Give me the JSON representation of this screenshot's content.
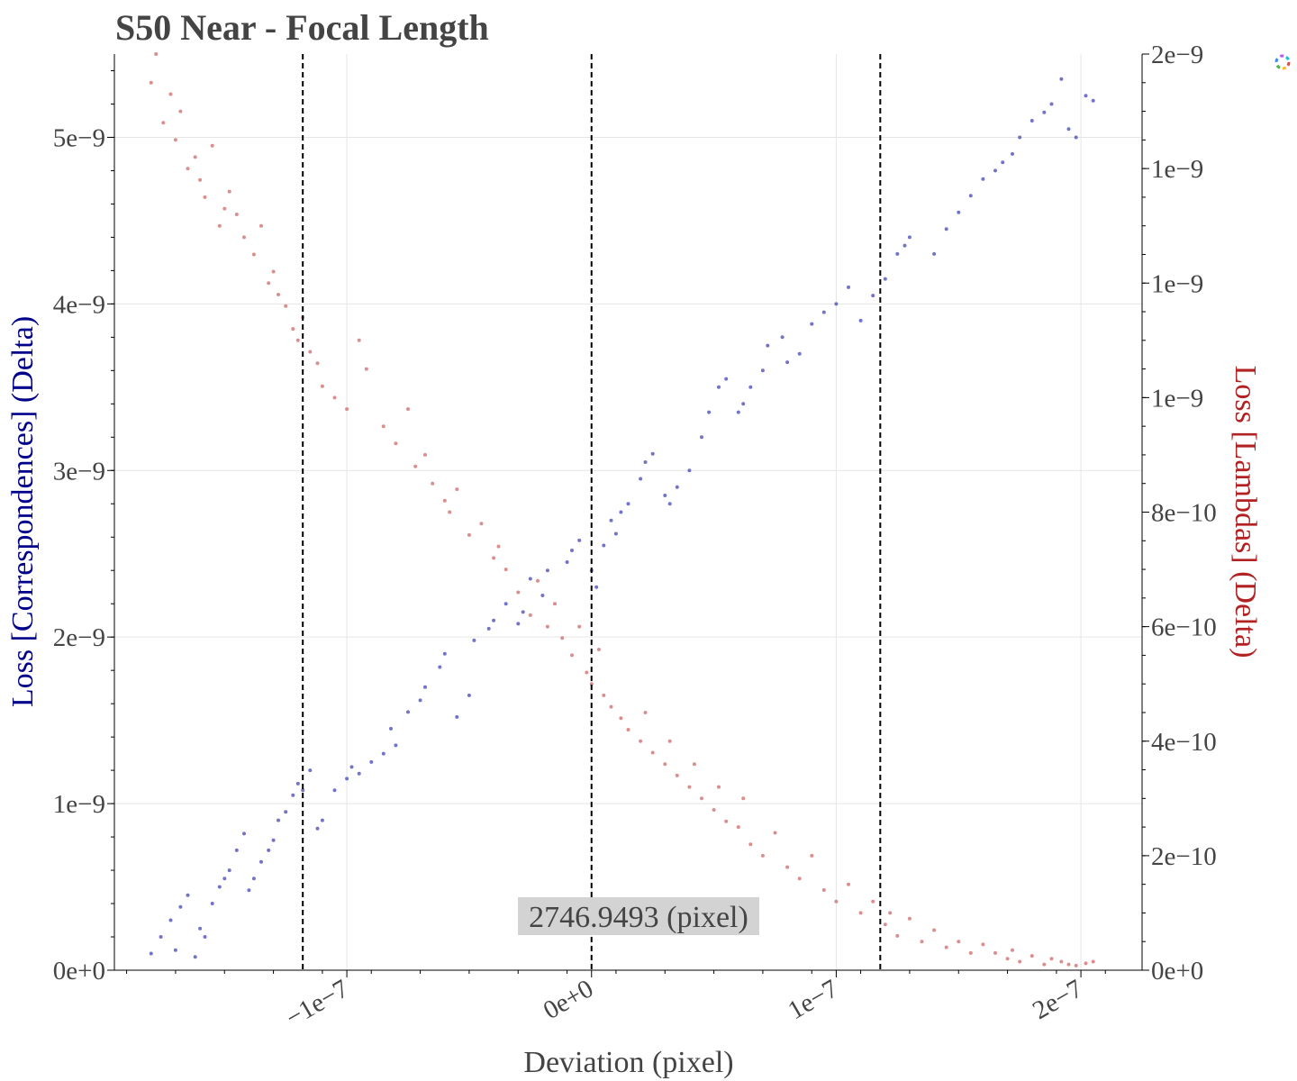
{
  "chart_data": {
    "type": "scatter",
    "title": "S50 Near - Focal Length",
    "xlabel": "Deviation (pixel)",
    "ylabel": "Loss [Correspondences] (Delta)",
    "y2label": "Loss [Lambdas] (Delta)",
    "xlim": [
      -1.95e-07,
      2.25e-07
    ],
    "ylim": [
      0,
      5.5e-09
    ],
    "y2lim": [
      0,
      1.6e-09
    ],
    "x_ticks": [
      -1e-07,
      0,
      1e-07,
      2e-07
    ],
    "x_tick_labels": [
      "−1e−7",
      "0e+0",
      "1e−7",
      "2e−7"
    ],
    "y_ticks": [
      0,
      1e-09,
      2e-09,
      3e-09,
      4e-09,
      5e-09
    ],
    "y_tick_labels": [
      "0e+0",
      "1e−9",
      "2e−9",
      "3e−9",
      "4e−9",
      "5e−9"
    ],
    "y2_ticks": [
      0,
      2e-10,
      4e-10,
      6e-10,
      8e-10,
      1e-09,
      1.2e-09,
      1.4e-09,
      1.6e-09
    ],
    "y2_tick_labels": [
      "0e+0",
      "2e−10",
      "4e−10",
      "6e−10",
      "8e−10",
      "1e−9",
      "1e−9",
      "1e−9",
      "2e−9"
    ],
    "grid": true,
    "vlines": [
      -1.18e-07,
      0,
      1.18e-07
    ],
    "annotation": "2746.9493 (pixel)",
    "series": [
      {
        "axis": "left",
        "color": "#5a5abf",
        "x": [
          -1.8e-07,
          -1.76e-07,
          -1.72e-07,
          -1.7e-07,
          -1.68e-07,
          -1.65e-07,
          -1.62e-07,
          -1.6e-07,
          -1.58e-07,
          -1.55e-07,
          -1.52e-07,
          -1.5e-07,
          -1.48e-07,
          -1.45e-07,
          -1.42e-07,
          -1.4e-07,
          -1.38e-07,
          -1.35e-07,
          -1.32e-07,
          -1.3e-07,
          -1.28e-07,
          -1.25e-07,
          -1.22e-07,
          -1.2e-07,
          -1.18e-07,
          -1.15e-07,
          -1.12e-07,
          -1.1e-07,
          -1.05e-07,
          -1e-07,
          -9.8e-08,
          -9.5e-08,
          -9e-08,
          -8.5e-08,
          -8.2e-08,
          -8e-08,
          -7.5e-08,
          -7e-08,
          -6.8e-08,
          -6.2e-08,
          -6e-08,
          -5.5e-08,
          -5e-08,
          -4.8e-08,
          -4.2e-08,
          -4e-08,
          -3.5e-08,
          -3e-08,
          -2.8e-08,
          -2.5e-08,
          -2e-08,
          -1.8e-08,
          -1e-08,
          -8e-09,
          -5e-09,
          0.0,
          2e-09,
          5e-09,
          8e-09,
          1e-08,
          1.2e-08,
          1.5e-08,
          2e-08,
          2.2e-08,
          2.5e-08,
          3e-08,
          3.2e-08,
          3.5e-08,
          4e-08,
          4.5e-08,
          4.8e-08,
          5.2e-08,
          5.5e-08,
          6e-08,
          6.2e-08,
          6.5e-08,
          7e-08,
          7.2e-08,
          7.8e-08,
          8e-08,
          8.5e-08,
          9e-08,
          9.5e-08,
          1e-07,
          1.05e-07,
          1.1e-07,
          1.15e-07,
          1.2e-07,
          1.25e-07,
          1.28e-07,
          1.3e-07,
          1.4e-07,
          1.45e-07,
          1.5e-07,
          1.55e-07,
          1.6e-07,
          1.65e-07,
          1.68e-07,
          1.72e-07,
          1.75e-07,
          1.8e-07,
          1.85e-07,
          1.88e-07,
          1.92e-07,
          1.95e-07,
          1.98e-07,
          2.02e-07,
          2.05e-07
        ],
        "y": [
          1e-10,
          2e-10,
          3e-10,
          1.2e-10,
          3.8e-10,
          4.5e-10,
          8e-11,
          2.5e-10,
          2e-10,
          4e-10,
          5e-10,
          5.5e-10,
          6e-10,
          7.2e-10,
          8.2e-10,
          4.8e-10,
          5.5e-10,
          6.5e-10,
          7.2e-10,
          7.8e-10,
          9e-10,
          9.5e-10,
          1.05e-09,
          1.12e-09,
          1.08e-09,
          1.2e-09,
          8.5e-10,
          9e-10,
          1.08e-09,
          1.15e-09,
          1.22e-09,
          1.18e-09,
          1.25e-09,
          1.3e-09,
          1.45e-09,
          1.35e-09,
          1.55e-09,
          1.62e-09,
          1.7e-09,
          1.82e-09,
          1.9e-09,
          1.52e-09,
          1.65e-09,
          1.98e-09,
          2.05e-09,
          2.1e-09,
          2.2e-09,
          2.08e-09,
          2.15e-09,
          2.35e-09,
          2.25e-09,
          2.4e-09,
          2.45e-09,
          2.52e-09,
          2.58e-09,
          2.4e-09,
          2.3e-09,
          2.55e-09,
          2.7e-09,
          2.62e-09,
          2.75e-09,
          2.8e-09,
          2.95e-09,
          3.05e-09,
          3.1e-09,
          2.85e-09,
          2.8e-09,
          2.9e-09,
          3e-09,
          3.2e-09,
          3.35e-09,
          3.5e-09,
          3.55e-09,
          3.35e-09,
          3.4e-09,
          3.5e-09,
          3.6e-09,
          3.75e-09,
          3.8e-09,
          3.65e-09,
          3.7e-09,
          3.88e-09,
          3.95e-09,
          4e-09,
          4.1e-09,
          3.9e-09,
          4.05e-09,
          4.15e-09,
          4.3e-09,
          4.35e-09,
          4.4e-09,
          4.3e-09,
          4.45e-09,
          4.55e-09,
          4.65e-09,
          4.75e-09,
          4.8e-09,
          4.85e-09,
          4.9e-09,
          5e-09,
          5.1e-09,
          5.15e-09,
          5.2e-09,
          5.35e-09,
          5.05e-09,
          5e-09,
          5.25e-09,
          5.22e-09
        ]
      },
      {
        "axis": "right",
        "color": "#d47a7a",
        "x": [
          -1.8e-07,
          -1.78e-07,
          -1.75e-07,
          -1.72e-07,
          -1.7e-07,
          -1.68e-07,
          -1.65e-07,
          -1.62e-07,
          -1.6e-07,
          -1.58e-07,
          -1.55e-07,
          -1.52e-07,
          -1.5e-07,
          -1.48e-07,
          -1.45e-07,
          -1.42e-07,
          -1.38e-07,
          -1.35e-07,
          -1.32e-07,
          -1.3e-07,
          -1.28e-07,
          -1.25e-07,
          -1.22e-07,
          -1.2e-07,
          -1.18e-07,
          -1.15e-07,
          -1.12e-07,
          -1.1e-07,
          -1.05e-07,
          -1e-07,
          -9.5e-08,
          -9.2e-08,
          -8.5e-08,
          -8e-08,
          -7.5e-08,
          -7.2e-08,
          -6.8e-08,
          -6.5e-08,
          -6e-08,
          -5.8e-08,
          -5.5e-08,
          -5e-08,
          -4.5e-08,
          -4e-08,
          -3.8e-08,
          -3.5e-08,
          -3e-08,
          -2.5e-08,
          -2.2e-08,
          -1.8e-08,
          -1.5e-08,
          -1.2e-08,
          -8e-09,
          -5e-09,
          -2e-09,
          0.0,
          3e-09,
          5e-09,
          8e-09,
          1.2e-08,
          1.5e-08,
          2e-08,
          2.2e-08,
          2.5e-08,
          3e-08,
          3.2e-08,
          3.5e-08,
          4e-08,
          4.2e-08,
          4.5e-08,
          5e-08,
          5.2e-08,
          5.5e-08,
          6e-08,
          6.2e-08,
          6.5e-08,
          7e-08,
          7.5e-08,
          8e-08,
          8.5e-08,
          9e-08,
          9.5e-08,
          1e-07,
          1.05e-07,
          1.1e-07,
          1.15e-07,
          1.2e-07,
          1.22e-07,
          1.25e-07,
          1.3e-07,
          1.35e-07,
          1.4e-07,
          1.45e-07,
          1.5e-07,
          1.55e-07,
          1.6e-07,
          1.65e-07,
          1.7e-07,
          1.72e-07,
          1.75e-07,
          1.8e-07,
          1.85e-07,
          1.88e-07,
          1.92e-07,
          1.95e-07,
          1.98e-07,
          2.02e-07,
          2.05e-07
        ],
        "y": [
          1.55e-09,
          1.6e-09,
          1.48e-09,
          1.53e-09,
          1.45e-09,
          1.5e-09,
          1.4e-09,
          1.42e-09,
          1.38e-09,
          1.35e-09,
          1.44e-09,
          1.3e-09,
          1.33e-09,
          1.36e-09,
          1.32e-09,
          1.28e-09,
          1.25e-09,
          1.3e-09,
          1.2e-09,
          1.22e-09,
          1.18e-09,
          1.16e-09,
          1.12e-09,
          1.1e-09,
          1.14e-09,
          1.08e-09,
          1.06e-09,
          1.02e-09,
          1e-09,
          9.8e-10,
          1.1e-09,
          1.05e-09,
          9.5e-10,
          9.2e-10,
          9.8e-10,
          8.8e-10,
          9e-10,
          8.5e-10,
          8.2e-10,
          8e-10,
          8.4e-10,
          7.6e-10,
          7.8e-10,
          7.2e-10,
          7.4e-10,
          7e-10,
          6.6e-10,
          6.2e-10,
          6.8e-10,
          6e-10,
          6.4e-10,
          5.8e-10,
          5.5e-10,
          6e-10,
          5.2e-10,
          5e-10,
          5.6e-10,
          4.8e-10,
          4.6e-10,
          4.4e-10,
          4.2e-10,
          4e-10,
          4.5e-10,
          3.8e-10,
          3.6e-10,
          4e-10,
          3.4e-10,
          3.2e-10,
          3.6e-10,
          3e-10,
          2.8e-10,
          3.2e-10,
          2.6e-10,
          2.5e-10,
          3e-10,
          2.2e-10,
          2e-10,
          2.4e-10,
          1.8e-10,
          1.6e-10,
          2e-10,
          1.4e-10,
          1.2e-10,
          1.5e-10,
          1e-10,
          1.2e-10,
          8e-11,
          1e-10,
          6e-11,
          9e-11,
          5e-11,
          7e-11,
          4e-11,
          5e-11,
          3e-11,
          4.5e-11,
          3e-11,
          2e-11,
          3.5e-11,
          1.5e-11,
          2.5e-11,
          1e-11,
          2e-11,
          1.5e-11,
          1e-11,
          8e-12,
          1.2e-11,
          1.5e-11
        ]
      }
    ]
  }
}
